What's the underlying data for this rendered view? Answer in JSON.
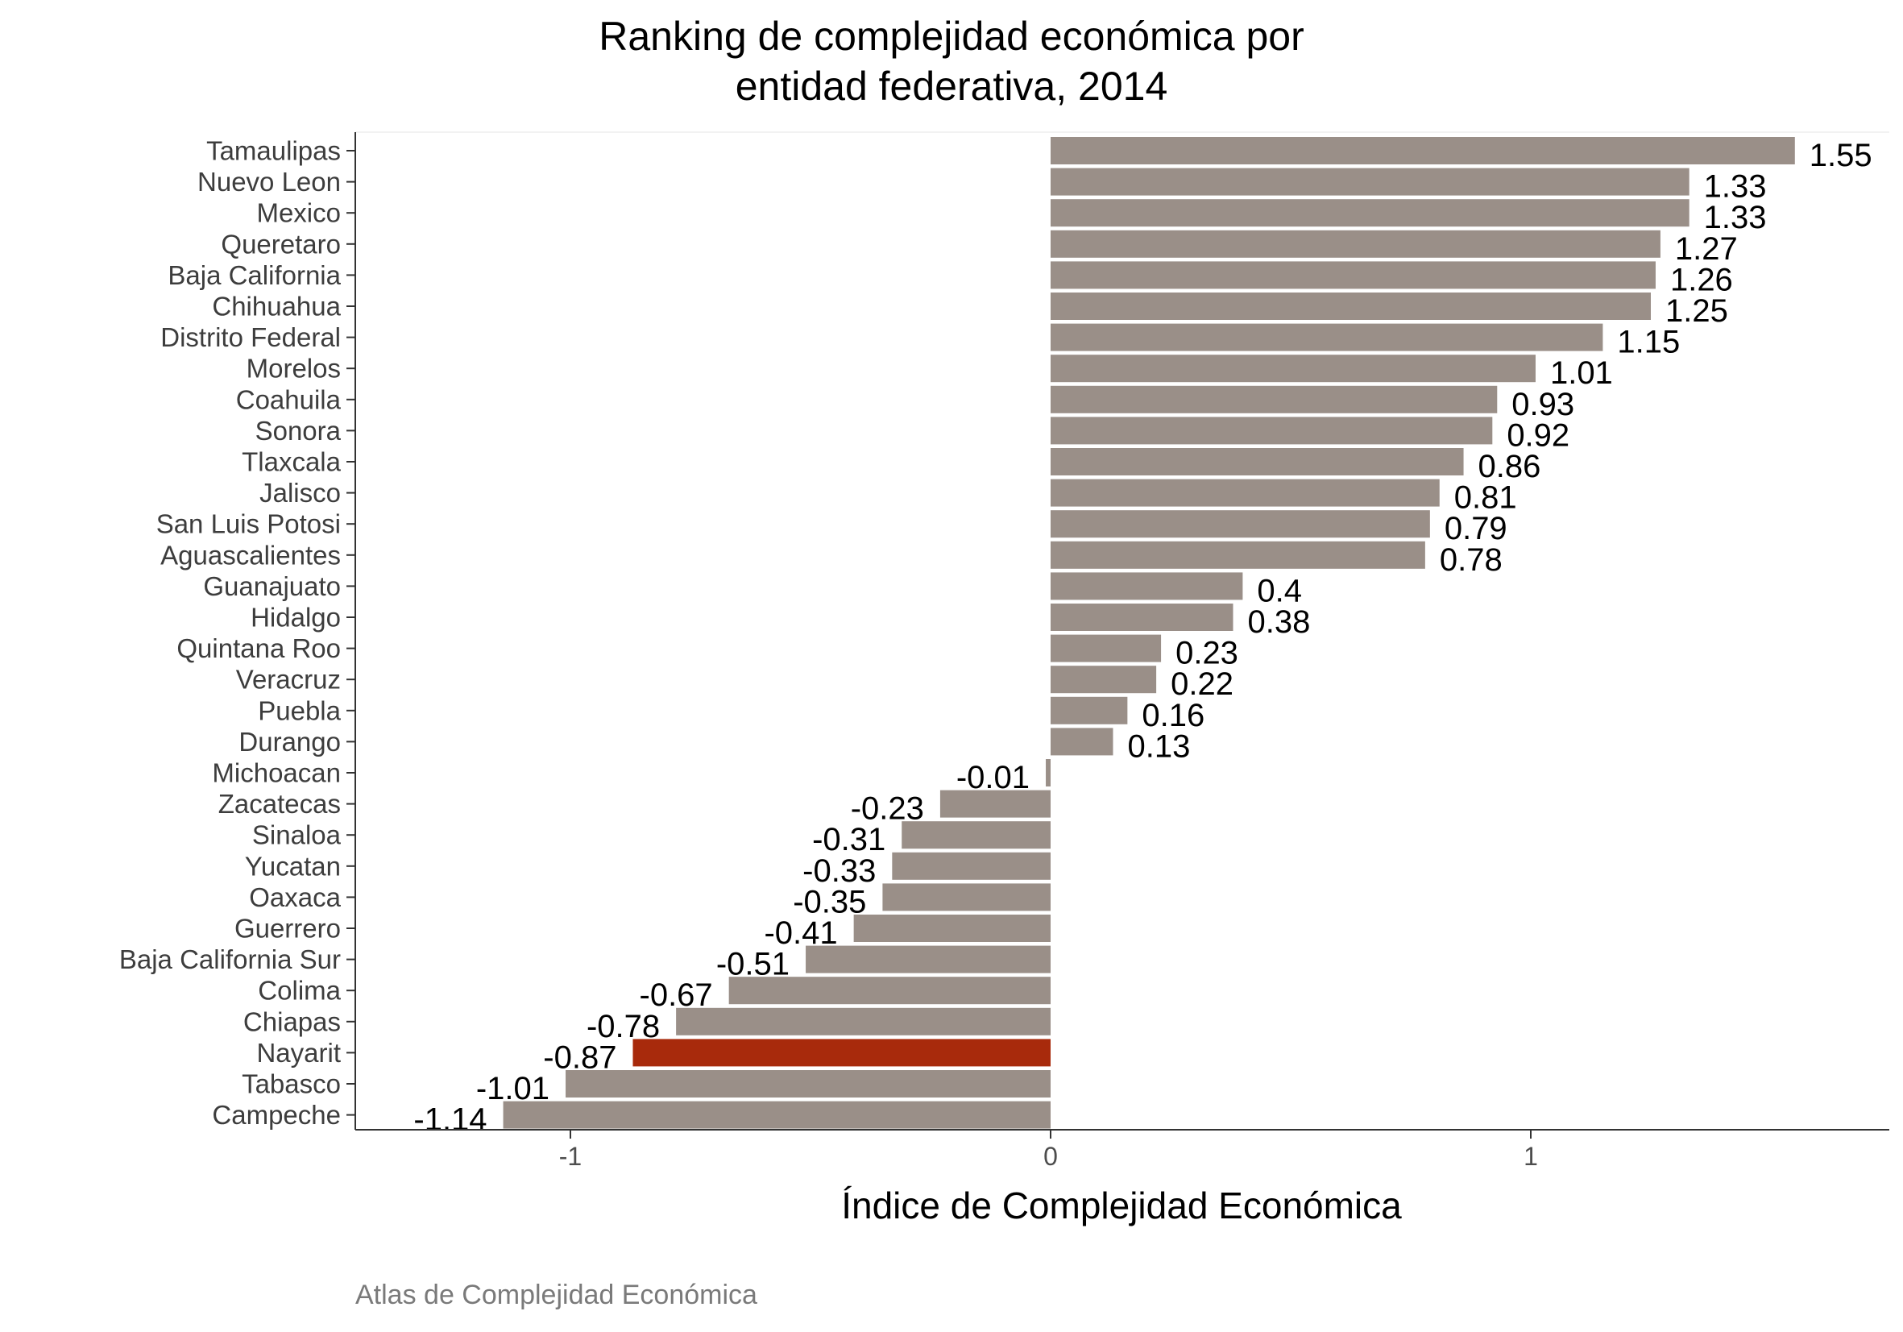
{
  "chart_data": {
    "type": "bar",
    "orientation": "horizontal",
    "title_lines": [
      "Ranking de complejidad económica por",
      "entidad federativa, 2014"
    ],
    "xlabel": "Índice de Complejidad Económica",
    "ylabel": "",
    "caption": "Atlas de Complejidad Económica",
    "xlim": [
      -1.45,
      1.75
    ],
    "x_ticks": [
      -1,
      0,
      1
    ],
    "x_tick_labels": [
      "-1",
      "0",
      "1"
    ],
    "grid": false,
    "bar_color": "#9a8f88",
    "highlight_color": "#a82a0c",
    "highlight_category": "Nayarit",
    "categories": [
      "Tamaulipas",
      "Nuevo Leon",
      "Mexico",
      "Queretaro",
      "Baja California",
      "Chihuahua",
      "Distrito Federal",
      "Morelos",
      "Coahuila",
      "Sonora",
      "Tlaxcala",
      "Jalisco",
      "San Luis Potosi",
      "Aguascalientes",
      "Guanajuato",
      "Hidalgo",
      "Quintana Roo",
      "Veracruz",
      "Puebla",
      "Durango",
      "Michoacan",
      "Zacatecas",
      "Sinaloa",
      "Yucatan",
      "Oaxaca",
      "Guerrero",
      "Baja California Sur",
      "Colima",
      "Chiapas",
      "Nayarit",
      "Tabasco",
      "Campeche"
    ],
    "values": [
      1.55,
      1.33,
      1.33,
      1.27,
      1.26,
      1.25,
      1.15,
      1.01,
      0.93,
      0.92,
      0.86,
      0.81,
      0.79,
      0.78,
      0.4,
      0.38,
      0.23,
      0.22,
      0.16,
      0.13,
      -0.01,
      -0.23,
      -0.31,
      -0.33,
      -0.35,
      -0.41,
      -0.51,
      -0.67,
      -0.78,
      -0.87,
      -1.01,
      -1.14
    ],
    "value_labels": [
      "1.55",
      "1.33",
      "1.33",
      "1.27",
      "1.26",
      "1.25",
      "1.15",
      "1.01",
      "0.93",
      "0.92",
      "0.86",
      "0.81",
      "0.79",
      "0.78",
      "0.4",
      "0.38",
      "0.23",
      "0.22",
      "0.16",
      "0.13",
      "-0.01",
      "-0.23",
      "-0.31",
      "-0.33",
      "-0.35",
      "-0.41",
      "-0.51",
      "-0.67",
      "-0.78",
      "-0.87",
      "-1.01",
      "-1.14"
    ]
  }
}
